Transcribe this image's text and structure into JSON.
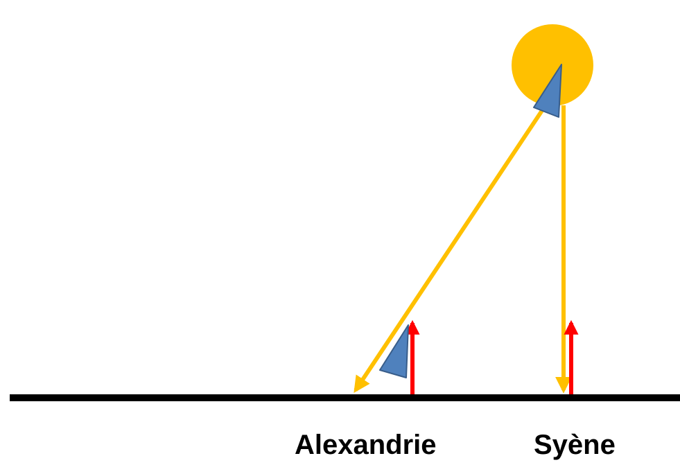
{
  "labels": {
    "alexandrie": "Alexandrie",
    "syene": "Syène"
  },
  "colors": {
    "sun": "#FFC000",
    "ray": "#FFC000",
    "ground": "#000000",
    "vertical": "#FF0000",
    "angle": "#4F81BD",
    "angle_outline": "#385D8A"
  },
  "icons": {
    "sun": "sun-circle",
    "vertical_markers": "up-arrow",
    "rays": "down-arrow",
    "angles": "triangle"
  }
}
